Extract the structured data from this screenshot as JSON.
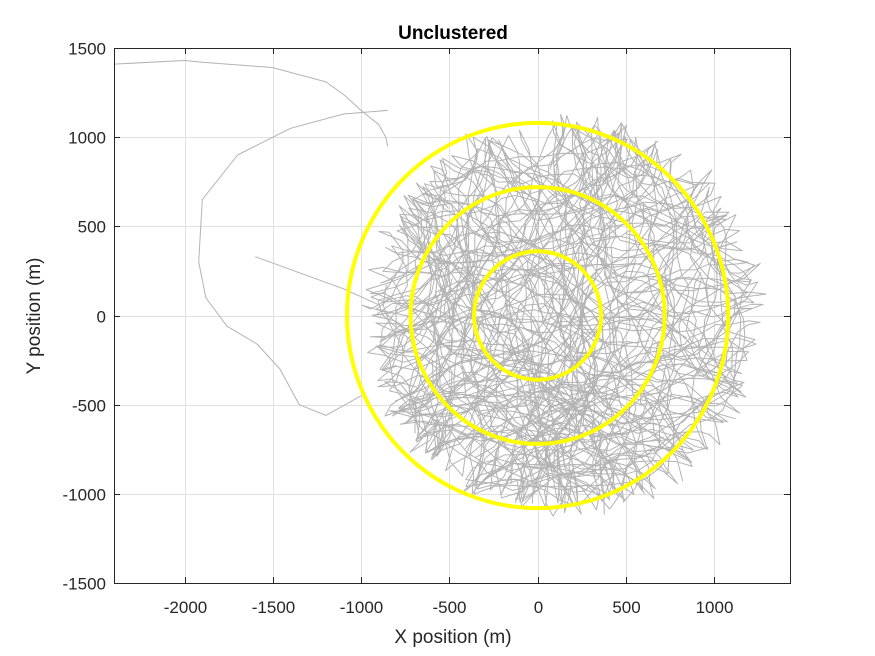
{
  "chart_data": {
    "type": "line",
    "title": "Unclustered",
    "xlabel": "X position (m)",
    "ylabel": "Y position (m)",
    "xlim": [
      -2400,
      1430
    ],
    "ylim": [
      -1500,
      1500
    ],
    "xticks": [
      -2000,
      -1500,
      -1000,
      -500,
      0,
      500,
      1000
    ],
    "yticks": [
      -1500,
      -1000,
      -500,
      0,
      500,
      1000,
      1500
    ],
    "grid": true,
    "colors": {
      "paths": "#b3b3b3",
      "rings": "#ffff00",
      "grid": "#e0e0e0",
      "axes": "#262626"
    },
    "rings": [
      {
        "cx": 0,
        "cy": 0,
        "r": 360
      },
      {
        "cx": 0,
        "cy": 0,
        "r": 720
      },
      {
        "cx": 0,
        "cy": 0,
        "r": 1080
      }
    ],
    "trajectory_count": 60,
    "long_trajectory": {
      "x": [
        -2400,
        -2000,
        -1900,
        -1500,
        -1200,
        -1100,
        -1000,
        -900,
        -860,
        -850
      ],
      "y": [
        1410,
        1430,
        1420,
        1390,
        1310,
        1240,
        1150,
        1070,
        1000,
        950
      ]
    },
    "long_trajectory_2": {
      "x": [
        -850,
        -1100,
        -1400,
        -1700,
        -1900,
        -1920,
        -1880,
        -1760,
        -1590,
        -1460,
        -1350,
        -1200,
        -1000
      ],
      "y": [
        1150,
        1130,
        1050,
        900,
        650,
        300,
        100,
        -60,
        -160,
        -300,
        -500,
        -560,
        -450
      ]
    },
    "spike_trajectory": {
      "x": [
        -1600,
        -1100,
        -900
      ],
      "y": [
        330,
        150,
        60
      ]
    }
  }
}
